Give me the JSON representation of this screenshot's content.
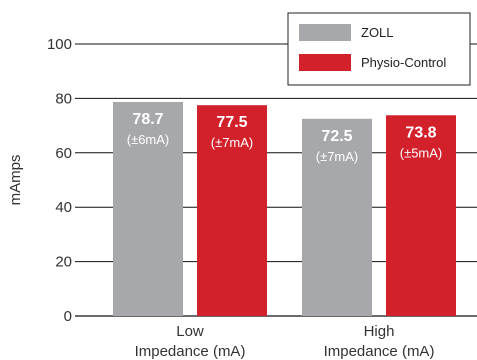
{
  "chart_data": {
    "type": "bar",
    "ylabel": "mAmps",
    "ylim": [
      0,
      100
    ],
    "yticks": [
      0,
      20,
      40,
      60,
      80,
      100
    ],
    "grid": true,
    "legend_position": "top-right",
    "categories": [
      [
        "Low",
        "Impedance (mA)"
      ],
      [
        "High",
        "Impedance (mA)"
      ]
    ],
    "series": [
      {
        "name": "ZOLL",
        "color": "#a7a8ab",
        "values": [
          78.7,
          72.5
        ],
        "labels": [
          "78.7",
          "72.5"
        ],
        "errors": [
          "(±6mA)",
          "(±7mA)"
        ]
      },
      {
        "name": "Physio-Control",
        "color": "#d3212c",
        "values": [
          77.5,
          73.8
        ],
        "labels": [
          "77.5",
          "73.8"
        ],
        "errors": [
          "(±7mA)",
          "(±5mA)"
        ]
      }
    ]
  }
}
